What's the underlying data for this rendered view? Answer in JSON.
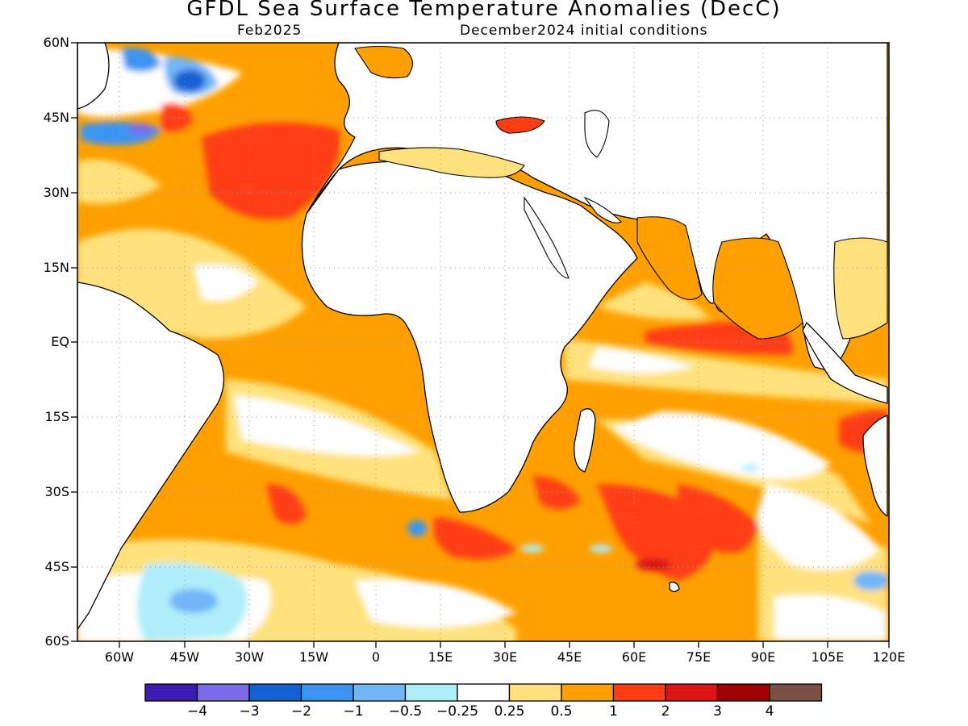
{
  "title": "GFDL Sea Surface Temperature Anomalies (DecC)",
  "subtitle_left": "Feb2025",
  "subtitle_right": "December2024 initial conditions",
  "lat_labels": [
    "60N",
    "45N",
    "30N",
    "15N",
    "EQ",
    "15S",
    "30S",
    "45S",
    "60S"
  ],
  "lon_labels": [
    "60W",
    "45W",
    "30W",
    "15W",
    "0",
    "15E",
    "30E",
    "45E",
    "60E",
    "75E",
    "90E",
    "105E",
    "120E"
  ],
  "colorbar": {
    "colors": [
      "#3b1cb4",
      "#7c6cec",
      "#1561d3",
      "#3b94f2",
      "#72b5f8",
      "#aeeefa",
      "#ffffff",
      "#ffe27d",
      "#ffa000",
      "#ff3c14",
      "#dc1414",
      "#a00000",
      "#7a5044"
    ],
    "labels": [
      "−4",
      "−3",
      "−2",
      "−1",
      "−0.5",
      "−0.25",
      "0.25",
      "0.5",
      "1",
      "2",
      "3",
      "4"
    ]
  }
}
